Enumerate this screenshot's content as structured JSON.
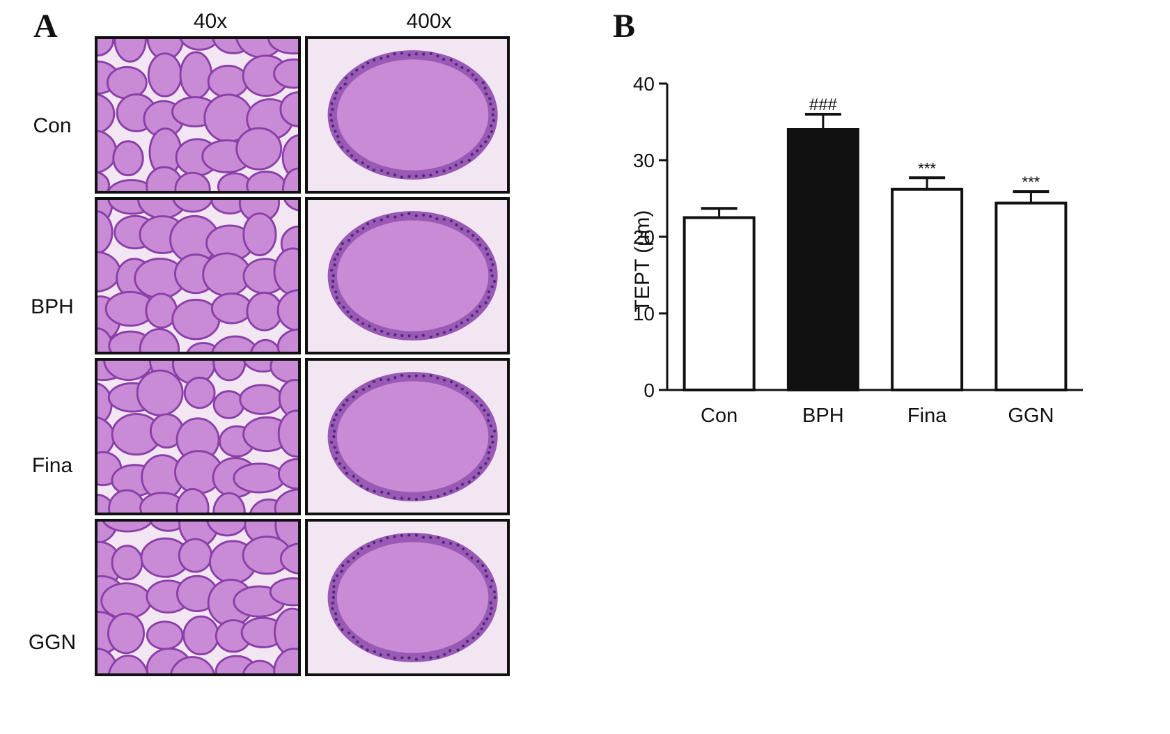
{
  "panels": {
    "a_label": "A",
    "b_label": "B"
  },
  "micrographs": {
    "column_headers": [
      "40x",
      "400x"
    ],
    "row_labels": [
      "Con",
      "BPH",
      "Fina",
      "GGN"
    ],
    "stain_colors": {
      "stroma": "#f2e6f3",
      "lumen": "#c98ad6",
      "epithelium": "#8a3fa8",
      "nuclei": "#4b2a7a"
    }
  },
  "chart_data": {
    "type": "bar",
    "categories": [
      "Con",
      "BPH",
      "Fina",
      "GGN"
    ],
    "values": [
      22.5,
      34,
      26.2,
      24.4
    ],
    "errors": [
      1.2,
      2,
      1.5,
      1.5
    ],
    "annotations": [
      "",
      "###",
      "***",
      "***"
    ],
    "bar_fills": [
      "#ffffff",
      "#111111",
      "#ffffff",
      "#ffffff"
    ],
    "ylabel": "TEPT (μm)",
    "xlabel": "",
    "ylim": [
      0,
      40
    ],
    "yticks": [
      0,
      10,
      20,
      30,
      40
    ],
    "grid": false
  }
}
